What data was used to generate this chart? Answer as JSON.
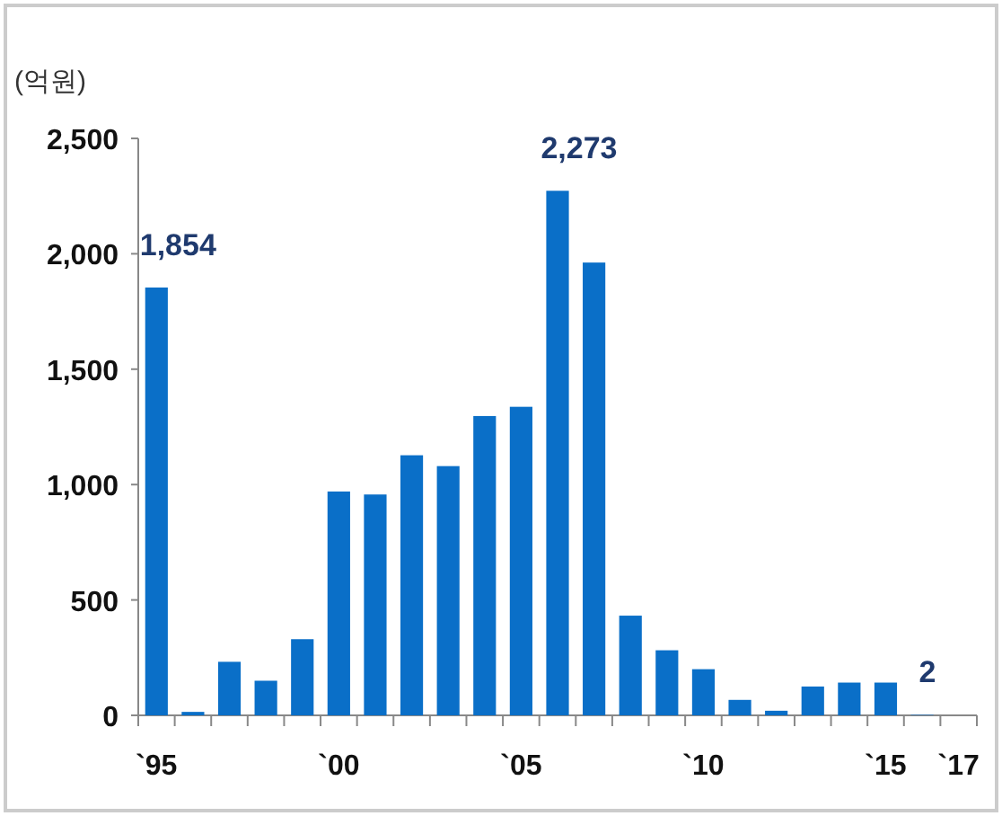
{
  "chart_data": {
    "type": "bar",
    "ylabel": "(억원)",
    "categories": [
      "`95",
      null,
      null,
      null,
      null,
      "`00",
      null,
      null,
      null,
      null,
      "`05",
      null,
      null,
      null,
      null,
      "`10",
      null,
      null,
      null,
      null,
      "`15",
      null,
      "`17"
    ],
    "values": [
      1854,
      15,
      232,
      150,
      330,
      970,
      957,
      1127,
      1080,
      1297,
      1337,
      2273,
      1962,
      432,
      282,
      200,
      67,
      20,
      125,
      142,
      142,
      2,
      null
    ],
    "value_labels": [
      "1,854",
      null,
      null,
      null,
      null,
      null,
      null,
      null,
      null,
      null,
      null,
      "2,273",
      null,
      null,
      null,
      null,
      null,
      null,
      null,
      null,
      null,
      "2",
      null
    ],
    "color": "#0a6fc8",
    "ylim": [
      0,
      2500
    ],
    "yticks": [
      {
        "value": 0,
        "label": "0"
      },
      {
        "value": 500,
        "label": "500"
      },
      {
        "value": 1000,
        "label": "1,000"
      },
      {
        "value": 1500,
        "label": "1,500"
      },
      {
        "value": 2000,
        "label": "2,000"
      },
      {
        "value": 2500,
        "label": "2,500"
      }
    ]
  }
}
